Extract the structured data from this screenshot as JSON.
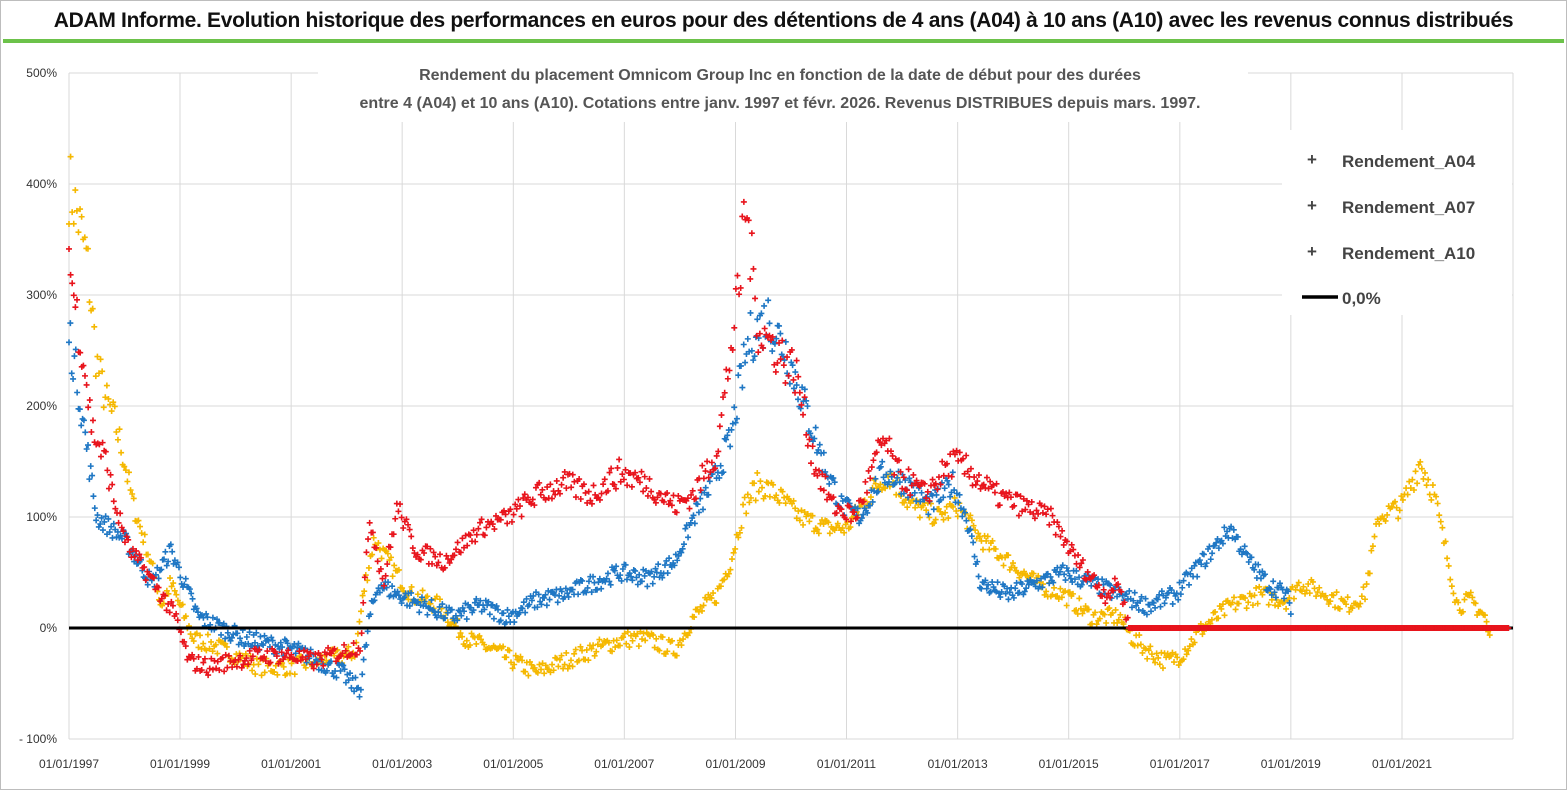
{
  "header": {
    "title": "ADAM Informe. Evolution historique des performances en euros pour des détentions de 4 ans (A04) à 10 ans (A10) avec les revenus connus distribués"
  },
  "colors": {
    "A04": "#f5b800",
    "A07": "#1f77c4",
    "A10": "#e8141c",
    "zero": "#000000",
    "banner_border": "#6cc24a"
  },
  "chart_data": {
    "type": "scatter",
    "title_lines": [
      "Rendement du placement Omnicom Group Inc en fonction de la date de début pour des durées",
      "entre 4 (A04) et 10 ans (A10). Cotations entre janv. 1997 et févr. 2026. Revenus DISTRIBUES depuis mars. 1997."
    ],
    "x_type": "date",
    "x_ticks": [
      "01/01/1997",
      "01/01/1999",
      "01/01/2001",
      "01/01/2003",
      "01/01/2005",
      "01/01/2007",
      "01/01/2009",
      "01/01/2011",
      "01/01/2013",
      "01/01/2015",
      "01/01/2017",
      "01/01/2019",
      "01/01/2021"
    ],
    "xlim": [
      "1997-01-01",
      "2023-01-01"
    ],
    "y_ticks": [
      "- 100%",
      "0%",
      "100%",
      "200%",
      "300%",
      "400%",
      "500%"
    ],
    "ylim": [
      -100,
      500
    ],
    "grid": true,
    "legend_position": "top-right",
    "legend": [
      "Rendement_A04",
      "Rendement_A07",
      "Rendement_A10",
      "0,0%"
    ],
    "series": [
      {
        "name": "Rendement_A04",
        "points": [
          [
            "1997-01-01",
            400
          ],
          [
            "1997-03-01",
            370
          ],
          [
            "1997-05-01",
            330
          ],
          [
            "1997-07-01",
            240
          ],
          [
            "1997-09-01",
            205
          ],
          [
            "1997-11-01",
            185
          ],
          [
            "1998-01-01",
            150
          ],
          [
            "1998-03-01",
            110
          ],
          [
            "1998-06-01",
            70
          ],
          [
            "1998-09-01",
            20
          ],
          [
            "1998-11-01",
            40
          ],
          [
            "1999-01-01",
            20
          ],
          [
            "1999-04-01",
            -10
          ],
          [
            "1999-08-01",
            -15
          ],
          [
            "2000-01-01",
            -25
          ],
          [
            "2000-06-01",
            -35
          ],
          [
            "2001-01-01",
            -35
          ],
          [
            "2001-06-01",
            -30
          ],
          [
            "2002-01-01",
            -25
          ],
          [
            "2002-03-01",
            -20
          ],
          [
            "2002-05-01",
            40
          ],
          [
            "2002-07-01",
            80
          ],
          [
            "2002-10-01",
            60
          ],
          [
            "2003-03-01",
            30
          ],
          [
            "2003-09-01",
            20
          ],
          [
            "2004-03-01",
            -10
          ],
          [
            "2004-09-01",
            -20
          ],
          [
            "2005-01-01",
            -30
          ],
          [
            "2005-06-01",
            -40
          ],
          [
            "2005-12-01",
            -30
          ],
          [
            "2006-06-01",
            -20
          ],
          [
            "2007-01-01",
            -10
          ],
          [
            "2007-06-01",
            -10
          ],
          [
            "2007-12-01",
            -20
          ],
          [
            "2008-04-01",
            10
          ],
          [
            "2008-09-01",
            30
          ],
          [
            "2008-12-01",
            60
          ],
          [
            "2009-03-01",
            110
          ],
          [
            "2009-06-01",
            130
          ],
          [
            "2009-10-01",
            120
          ],
          [
            "2010-03-01",
            100
          ],
          [
            "2010-09-01",
            90
          ],
          [
            "2011-01-01",
            90
          ],
          [
            "2011-06-01",
            120
          ],
          [
            "2011-10-01",
            140
          ],
          [
            "2012-03-01",
            110
          ],
          [
            "2012-09-01",
            100
          ],
          [
            "2013-01-01",
            110
          ],
          [
            "2013-06-01",
            80
          ],
          [
            "2013-12-01",
            60
          ],
          [
            "2014-06-01",
            40
          ],
          [
            "2014-12-01",
            30
          ],
          [
            "2015-06-01",
            10
          ],
          [
            "2015-12-01",
            10
          ],
          [
            "2016-03-01",
            -10
          ],
          [
            "2016-06-01",
            -20
          ],
          [
            "2016-10-01",
            -30
          ],
          [
            "2017-01-01",
            -25
          ],
          [
            "2017-06-01",
            0
          ],
          [
            "2017-12-01",
            20
          ],
          [
            "2018-06-01",
            30
          ],
          [
            "2018-12-01",
            25
          ],
          [
            "2019-03-01",
            40
          ],
          [
            "2019-09-01",
            30
          ],
          [
            "2020-01-01",
            20
          ],
          [
            "2020-05-01",
            30
          ],
          [
            "2020-08-01",
            100
          ],
          [
            "2021-01-01",
            110
          ],
          [
            "2021-05-01",
            150
          ],
          [
            "2021-08-01",
            120
          ],
          [
            "2021-11-01",
            60
          ],
          [
            "2022-01-01",
            20
          ],
          [
            "2022-04-01",
            25
          ],
          [
            "2022-07-01",
            10
          ],
          [
            "2022-08-01",
            -10
          ]
        ]
      },
      {
        "name": "Rendement_A07",
        "points": [
          [
            "1997-01-01",
            265
          ],
          [
            "1997-03-01",
            220
          ],
          [
            "1997-05-01",
            160
          ],
          [
            "1997-07-01",
            100
          ],
          [
            "1997-10-01",
            90
          ],
          [
            "1998-01-01",
            80
          ],
          [
            "1998-04-01",
            60
          ],
          [
            "1998-07-01",
            40
          ],
          [
            "1998-11-01",
            70
          ],
          [
            "1999-01-01",
            50
          ],
          [
            "1999-05-01",
            10
          ],
          [
            "1999-10-01",
            0
          ],
          [
            "2000-03-01",
            -10
          ],
          [
            "2000-09-01",
            -15
          ],
          [
            "2001-02-01",
            -20
          ],
          [
            "2001-07-01",
            -30
          ],
          [
            "2001-12-01",
            -40
          ],
          [
            "2002-02-01",
            -50
          ],
          [
            "2002-04-01",
            -55
          ],
          [
            "2002-06-01",
            10
          ],
          [
            "2002-08-01",
            40
          ],
          [
            "2002-12-01",
            30
          ],
          [
            "2003-06-01",
            20
          ],
          [
            "2003-12-01",
            10
          ],
          [
            "2004-06-01",
            20
          ],
          [
            "2004-12-01",
            10
          ],
          [
            "2005-06-01",
            25
          ],
          [
            "2005-12-01",
            30
          ],
          [
            "2006-06-01",
            40
          ],
          [
            "2006-12-01",
            50
          ],
          [
            "2007-06-01",
            45
          ],
          [
            "2007-12-01",
            60
          ],
          [
            "2008-04-01",
            100
          ],
          [
            "2008-08-01",
            130
          ],
          [
            "2008-12-01",
            170
          ],
          [
            "2009-02-01",
            220
          ],
          [
            "2009-04-01",
            260
          ],
          [
            "2009-08-01",
            280
          ],
          [
            "2009-12-01",
            250
          ],
          [
            "2010-04-01",
            200
          ],
          [
            "2010-08-01",
            150
          ],
          [
            "2010-12-01",
            110
          ],
          [
            "2011-04-01",
            100
          ],
          [
            "2011-09-01",
            140
          ],
          [
            "2012-02-01",
            130
          ],
          [
            "2012-07-01",
            110
          ],
          [
            "2012-12-01",
            130
          ],
          [
            "2013-03-01",
            100
          ],
          [
            "2013-06-01",
            40
          ],
          [
            "2013-12-01",
            30
          ],
          [
            "2014-06-01",
            40
          ],
          [
            "2014-12-01",
            50
          ],
          [
            "2015-06-01",
            40
          ],
          [
            "2015-12-01",
            30
          ],
          [
            "2016-06-01",
            20
          ],
          [
            "2016-12-01",
            30
          ],
          [
            "2017-06-01",
            60
          ],
          [
            "2017-12-01",
            90
          ],
          [
            "2018-04-01",
            60
          ],
          [
            "2018-08-01",
            40
          ],
          [
            "2018-12-01",
            30
          ],
          [
            "2019-01-01",
            20
          ]
        ]
      },
      {
        "name": "Rendement_A10",
        "points": [
          [
            "1997-01-01",
            335
          ],
          [
            "1997-02-01",
            300
          ],
          [
            "1997-04-01",
            250
          ],
          [
            "1997-06-01",
            180
          ],
          [
            "1997-09-01",
            150
          ],
          [
            "1997-11-01",
            110
          ],
          [
            "1998-02-01",
            70
          ],
          [
            "1998-05-01",
            55
          ],
          [
            "1998-09-01",
            30
          ],
          [
            "1998-12-01",
            10
          ],
          [
            "1999-03-01",
            -30
          ],
          [
            "1999-07-01",
            -35
          ],
          [
            "1999-12-01",
            -30
          ],
          [
            "2000-06-01",
            -25
          ],
          [
            "2001-01-01",
            -25
          ],
          [
            "2001-06-01",
            -30
          ],
          [
            "2002-01-01",
            -20
          ],
          [
            "2002-04-01",
            -15
          ],
          [
            "2002-06-01",
            100
          ],
          [
            "2002-09-01",
            40
          ],
          [
            "2002-12-01",
            110
          ],
          [
            "2003-04-01",
            70
          ],
          [
            "2003-10-01",
            60
          ],
          [
            "2004-06-01",
            90
          ],
          [
            "2004-12-01",
            100
          ],
          [
            "2005-06-01",
            120
          ],
          [
            "2005-12-01",
            130
          ],
          [
            "2006-06-01",
            120
          ],
          [
            "2006-12-01",
            140
          ],
          [
            "2007-06-01",
            130
          ],
          [
            "2007-12-01",
            110
          ],
          [
            "2008-04-01",
            120
          ],
          [
            "2008-09-01",
            160
          ],
          [
            "2008-12-01",
            250
          ],
          [
            "2009-02-01",
            310
          ],
          [
            "2009-03-01",
            390
          ],
          [
            "2009-06-01",
            270
          ],
          [
            "2009-10-01",
            250
          ],
          [
            "2010-02-01",
            230
          ],
          [
            "2010-06-01",
            150
          ],
          [
            "2010-10-01",
            110
          ],
          [
            "2011-03-01",
            100
          ],
          [
            "2011-09-01",
            170
          ],
          [
            "2011-12-01",
            140
          ],
          [
            "2012-06-01",
            120
          ],
          [
            "2012-12-01",
            150
          ],
          [
            "2013-04-01",
            140
          ],
          [
            "2013-09-01",
            120
          ],
          [
            "2014-03-01",
            110
          ],
          [
            "2014-09-01",
            100
          ],
          [
            "2015-03-01",
            60
          ],
          [
            "2015-09-01",
            30
          ],
          [
            "2015-12-01",
            40
          ],
          [
            "2016-02-01",
            0
          ],
          [
            "2017-01-01",
            0
          ],
          [
            "2018-01-01",
            0
          ],
          [
            "2019-01-01",
            0
          ],
          [
            "2020-01-01",
            0
          ],
          [
            "2021-01-01",
            0
          ],
          [
            "2022-01-01",
            0
          ],
          [
            "2022-12-01",
            0
          ]
        ]
      },
      {
        "name": "0,0%",
        "points": [
          [
            "1997-01-01",
            0
          ],
          [
            "2023-01-01",
            0
          ]
        ]
      }
    ]
  }
}
